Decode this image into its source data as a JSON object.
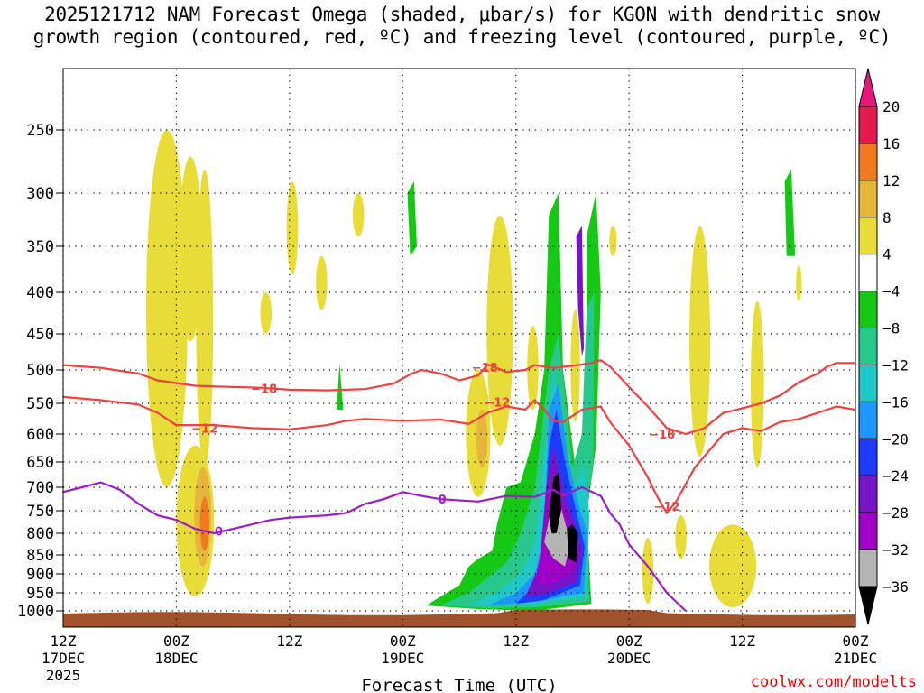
{
  "title": "2025121712 NAM Forecast Omega (shaded, μbar/s) for KGON with dendritic snow\ngrowth region (contoured, red, ºC) and freezing level (contoured, purple, ºC)",
  "credit": "coolwx.com/modelts",
  "chart_data": {
    "type": "heatmap",
    "title": "2025121712 NAM Forecast Omega (shaded, μbar/s) for KGON with dendritic snow growth region (contoured, red, ºC) and freezing level (contoured, purple, ºC)",
    "xlabel": "Forecast Time (UTC)",
    "ylabel": "",
    "xlim_hours": [
      0,
      84
    ],
    "ylim_hpa": [
      1030,
      200
    ],
    "y_ticks": [
      {
        "value": 250,
        "label": "250"
      },
      {
        "value": 300,
        "label": "300"
      },
      {
        "value": 350,
        "label": "350"
      },
      {
        "value": 400,
        "label": "400"
      },
      {
        "value": 450,
        "label": "450"
      },
      {
        "value": 500,
        "label": "500"
      },
      {
        "value": 550,
        "label": "550"
      },
      {
        "value": 600,
        "label": "600"
      },
      {
        "value": 650,
        "label": "650"
      },
      {
        "value": 700,
        "label": "700"
      },
      {
        "value": 750,
        "label": "750"
      },
      {
        "value": 800,
        "label": "800"
      },
      {
        "value": 850,
        "label": "850"
      },
      {
        "value": 900,
        "label": "900"
      },
      {
        "value": 950,
        "label": "950"
      },
      {
        "value": 1000,
        "label": "1000"
      }
    ],
    "x_ticks": [
      {
        "hour": 0,
        "label": "12Z",
        "sub": "17DEC",
        "year": "2025"
      },
      {
        "hour": 12,
        "label": "00Z",
        "sub": "18DEC",
        "year": ""
      },
      {
        "hour": 24,
        "label": "12Z",
        "sub": "",
        "year": ""
      },
      {
        "hour": 36,
        "label": "00Z",
        "sub": "19DEC",
        "year": ""
      },
      {
        "hour": 48,
        "label": "12Z",
        "sub": "",
        "year": ""
      },
      {
        "hour": 60,
        "label": "00Z",
        "sub": "20DEC",
        "year": ""
      },
      {
        "hour": 72,
        "label": "12Z",
        "sub": "",
        "year": ""
      },
      {
        "hour": 84,
        "label": "00Z",
        "sub": "21DEC",
        "year": ""
      }
    ],
    "colorbar": {
      "levels": [
        {
          "label": "20",
          "color": "#e31a4e"
        },
        {
          "label": "16",
          "color": "#f0453a"
        },
        {
          "label": "12",
          "color": "#f07a20"
        },
        {
          "label": "8",
          "color": "#e6b63c"
        },
        {
          "label": "4",
          "color": "#e8dc38"
        },
        {
          "label": "-4",
          "color": "#ffffff"
        },
        {
          "label": "-8",
          "color": "#14c814"
        },
        {
          "label": "-12",
          "color": "#28c88c"
        },
        {
          "label": "-16",
          "color": "#1ec8c8"
        },
        {
          "label": "-20",
          "color": "#1e96ff"
        },
        {
          "label": "-24",
          "color": "#1e3cff"
        },
        {
          "label": "-28",
          "color": "#7814c8"
        },
        {
          "label": "-32",
          "color": "#a000c8"
        },
        {
          "label": "-36",
          "color": "#b4b4b4"
        }
      ],
      "top_color": "#e6197a",
      "bottom_color": "#000000"
    },
    "contours": [
      {
        "name": "dendritic-top -18C",
        "label": "-18",
        "color": "#f04040",
        "points": [
          [
            0,
            493
          ],
          [
            4,
            497
          ],
          [
            8,
            505
          ],
          [
            10,
            515
          ],
          [
            14,
            523
          ],
          [
            18,
            525
          ],
          [
            21,
            526
          ],
          [
            24,
            529
          ],
          [
            28,
            530
          ],
          [
            32,
            528
          ],
          [
            35,
            520
          ],
          [
            37,
            505
          ],
          [
            38,
            500
          ],
          [
            40,
            505
          ],
          [
            42,
            515
          ],
          [
            44,
            508
          ],
          [
            45,
            492
          ],
          [
            47,
            503
          ],
          [
            49,
            500
          ],
          [
            50,
            493
          ],
          [
            52,
            497
          ],
          [
            54,
            494
          ],
          [
            56,
            490
          ],
          [
            57,
            486
          ],
          [
            58,
            495
          ],
          [
            60,
            525
          ],
          [
            62,
            555
          ],
          [
            64,
            590
          ],
          [
            66,
            600
          ],
          [
            68,
            590
          ],
          [
            70,
            565
          ],
          [
            72,
            558
          ],
          [
            74,
            550
          ],
          [
            76,
            538
          ],
          [
            78,
            518
          ],
          [
            80,
            505
          ],
          [
            81,
            495
          ],
          [
            82,
            490
          ],
          [
            84,
            490
          ]
        ]
      },
      {
        "name": "dendritic-bottom -12C",
        "label": "-12",
        "color": "#f04040",
        "points": [
          [
            0,
            540
          ],
          [
            4,
            545
          ],
          [
            8,
            552
          ],
          [
            10,
            565
          ],
          [
            12,
            585
          ],
          [
            16,
            585
          ],
          [
            20,
            590
          ],
          [
            24,
            592
          ],
          [
            28,
            585
          ],
          [
            30,
            578
          ],
          [
            32,
            575
          ],
          [
            36,
            578
          ],
          [
            40,
            576
          ],
          [
            43,
            583
          ],
          [
            45,
            565
          ],
          [
            47,
            555
          ],
          [
            49,
            560
          ],
          [
            50,
            545
          ],
          [
            51,
            560
          ],
          [
            52,
            578
          ],
          [
            53,
            580
          ],
          [
            55,
            560
          ],
          [
            57,
            555
          ],
          [
            58,
            580
          ],
          [
            60,
            620
          ],
          [
            62,
            680
          ],
          [
            63,
            720
          ],
          [
            64,
            755
          ],
          [
            65,
            730
          ],
          [
            67,
            660
          ],
          [
            70,
            600
          ],
          [
            72,
            590
          ],
          [
            74,
            595
          ],
          [
            76,
            580
          ],
          [
            78,
            575
          ],
          [
            80,
            565
          ],
          [
            82,
            555
          ],
          [
            84,
            560
          ]
        ]
      },
      {
        "name": "freezing-level 0C",
        "label": "0",
        "color": "#9b1ec8",
        "points": [
          [
            0,
            710
          ],
          [
            2,
            700
          ],
          [
            4,
            690
          ],
          [
            6,
            705
          ],
          [
            8,
            735
          ],
          [
            10,
            760
          ],
          [
            12,
            770
          ],
          [
            14,
            790
          ],
          [
            16,
            800
          ],
          [
            18,
            790
          ],
          [
            20,
            780
          ],
          [
            22,
            770
          ],
          [
            24,
            765
          ],
          [
            28,
            760
          ],
          [
            30,
            755
          ],
          [
            32,
            735
          ],
          [
            34,
            725
          ],
          [
            36,
            710
          ],
          [
            38,
            718
          ],
          [
            40,
            725
          ],
          [
            44,
            730
          ],
          [
            47,
            718
          ],
          [
            50,
            720
          ],
          [
            52,
            705
          ],
          [
            53,
            718
          ],
          [
            55,
            700
          ],
          [
            57,
            718
          ],
          [
            58,
            755
          ],
          [
            59,
            780
          ],
          [
            60,
            825
          ],
          [
            62,
            880
          ],
          [
            64,
            950
          ],
          [
            66,
            1000
          ]
        ]
      }
    ]
  }
}
